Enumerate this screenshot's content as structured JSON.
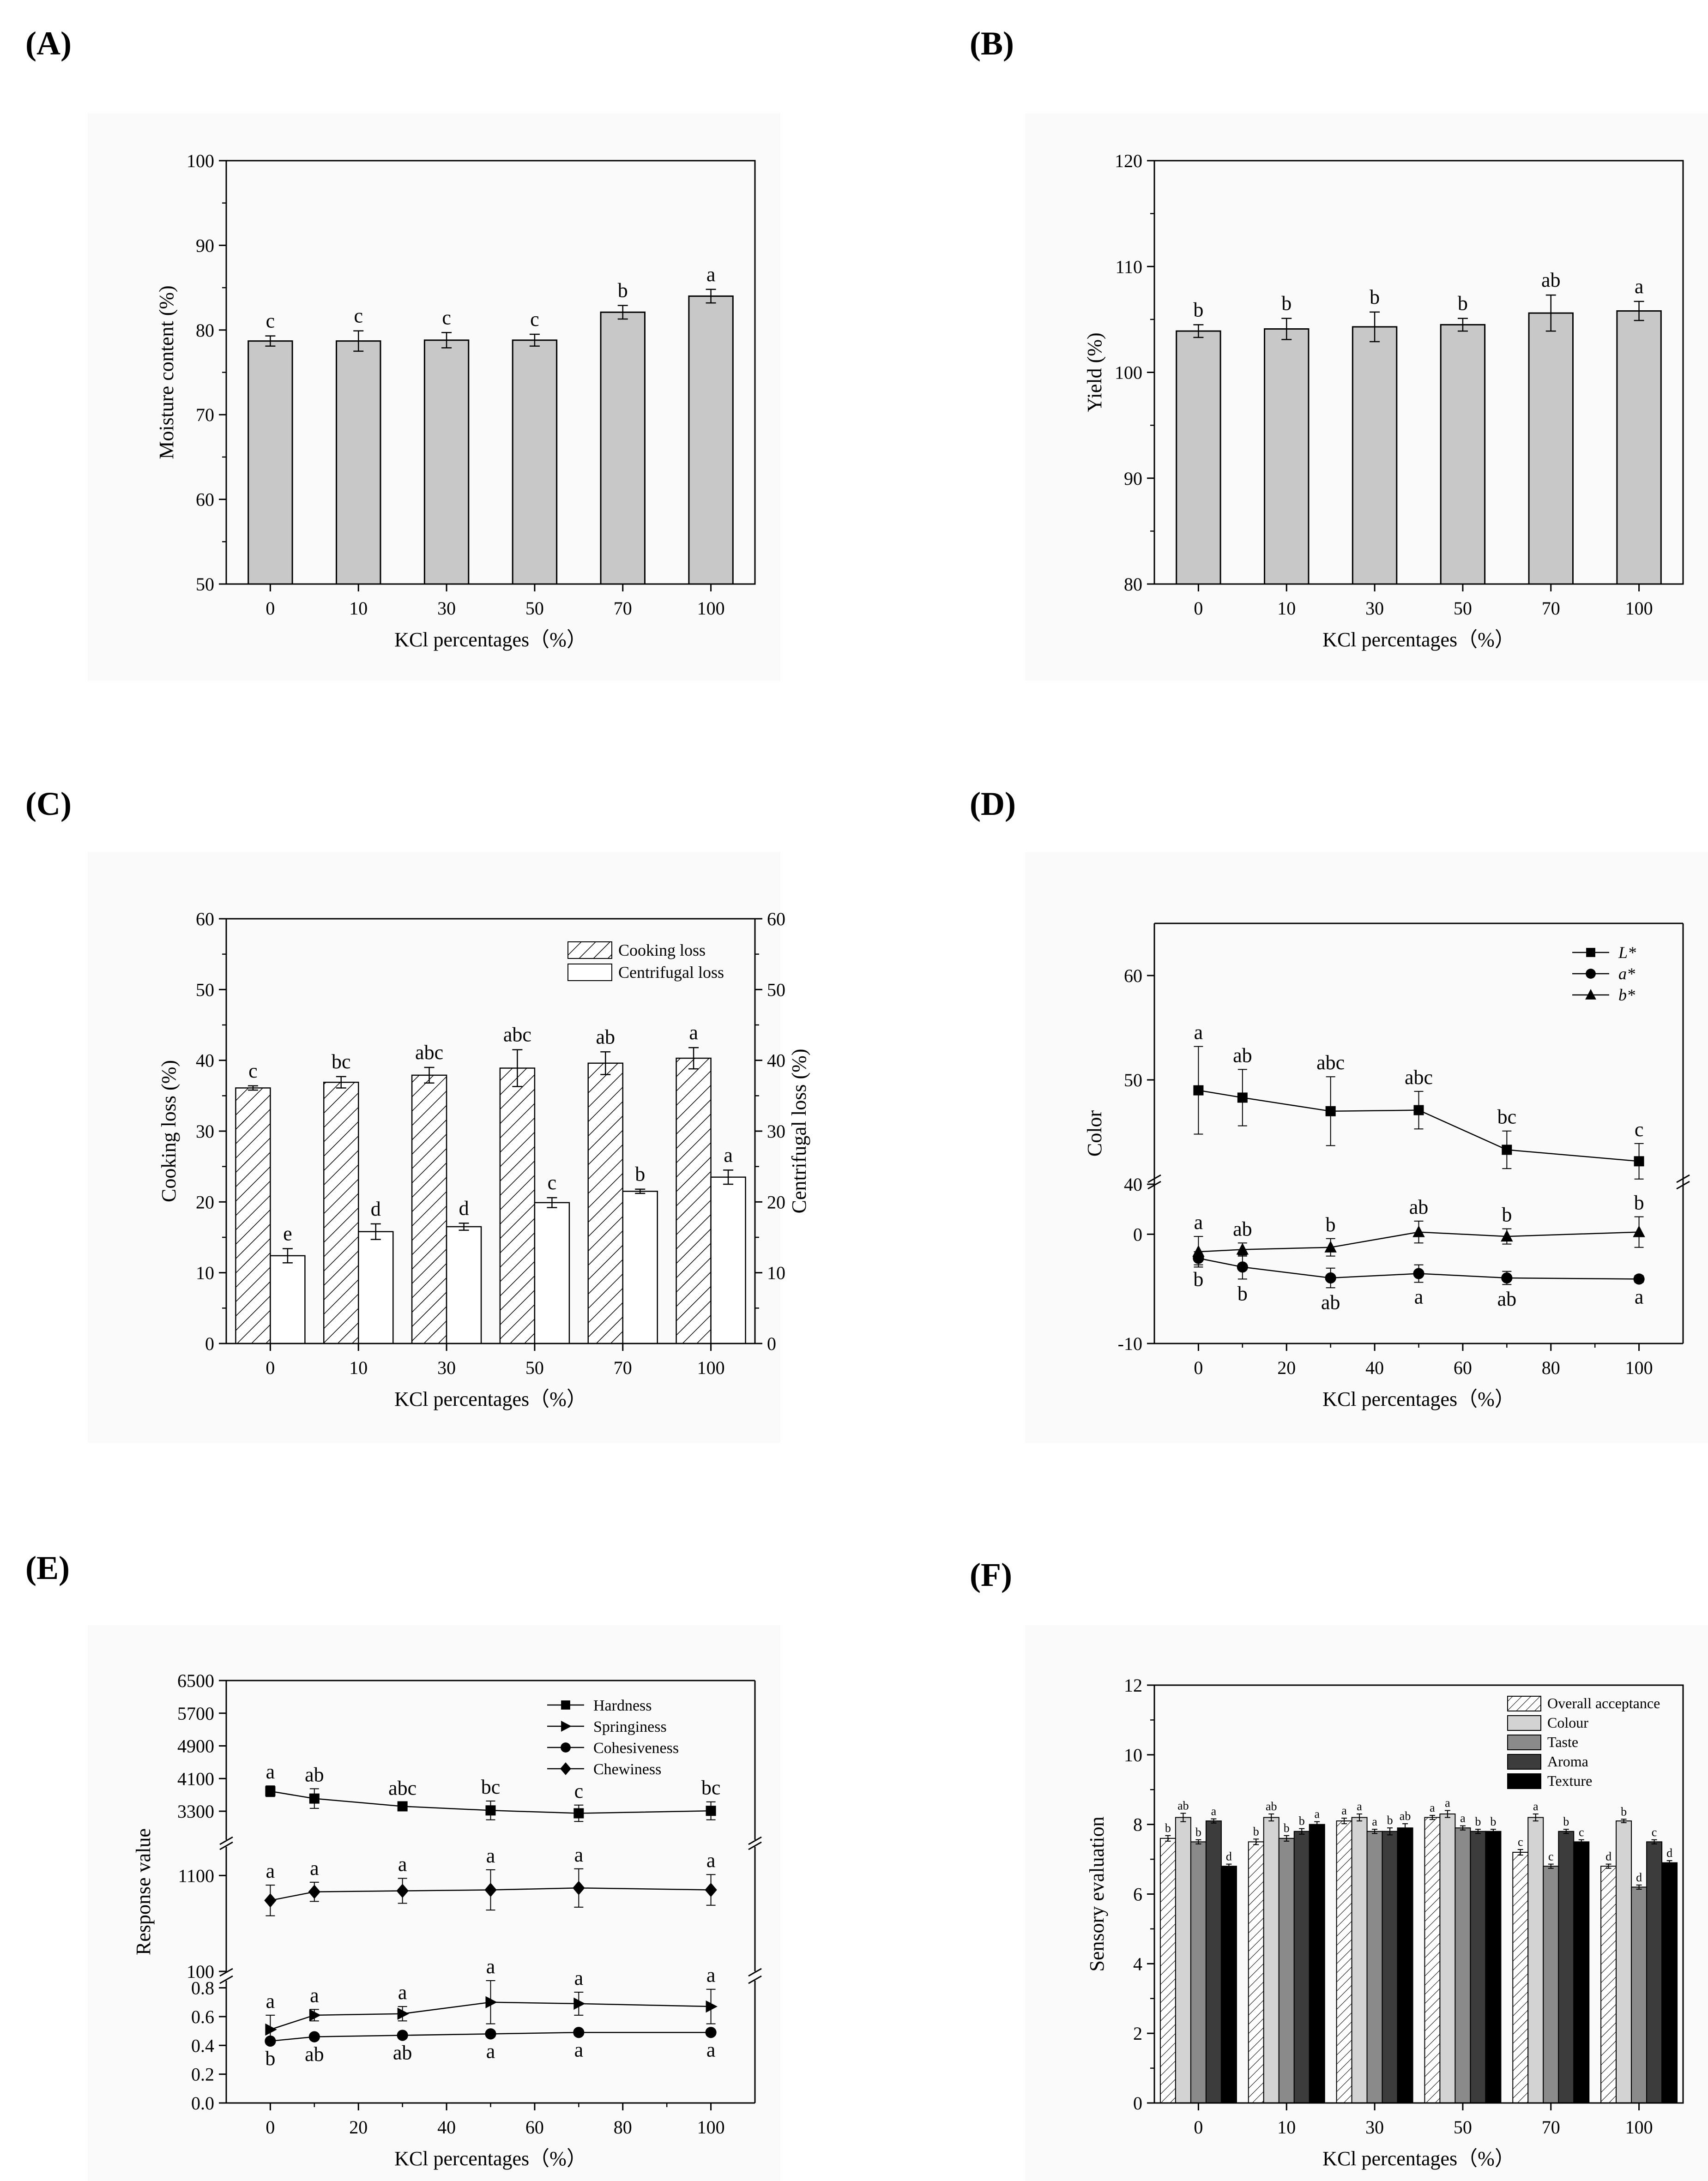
{
  "figure": {
    "panel_labels": [
      "(A)",
      "(B)",
      "(C)",
      "(D)",
      "(E)",
      "(F)"
    ]
  },
  "chart_data": [
    {
      "panel": "(A)",
      "type": "bar",
      "xlabel": "KCl percentages（%）",
      "ylabel": "Moisture content (%)",
      "categories": [
        "0",
        "10",
        "30",
        "50",
        "70",
        "100"
      ],
      "values": [
        78.7,
        78.7,
        78.8,
        78.8,
        82.1,
        84.0
      ],
      "errors": [
        0.6,
        1.2,
        0.9,
        0.7,
        0.8,
        0.8
      ],
      "letters": [
        "c",
        "c",
        "c",
        "c",
        "b",
        "a"
      ],
      "ylim": [
        50,
        100
      ],
      "yticks": [
        50,
        60,
        70,
        80,
        90,
        100
      ],
      "color": "#c8c8c8"
    },
    {
      "panel": "(B)",
      "type": "bar",
      "xlabel": "KCl percentages（%）",
      "ylabel": "Yield (%)",
      "categories": [
        "0",
        "10",
        "30",
        "50",
        "70",
        "100"
      ],
      "values": [
        103.9,
        104.1,
        104.3,
        104.5,
        105.6,
        105.8
      ],
      "errors": [
        0.6,
        1.0,
        1.4,
        0.6,
        1.7,
        0.9
      ],
      "letters": [
        "b",
        "b",
        "b",
        "b",
        "ab",
        "a"
      ],
      "ylim": [
        80,
        120
      ],
      "yticks": [
        80,
        90,
        100,
        110,
        120
      ],
      "color": "#c8c8c8"
    },
    {
      "panel": "(C)",
      "type": "bar",
      "xlabel": "KCl percentages（%）",
      "ylabel": "Cooking loss (%)",
      "ylabel_right": "Centrifugal loss (%)",
      "categories": [
        "0",
        "10",
        "30",
        "50",
        "70",
        "100"
      ],
      "ylim": [
        0,
        60
      ],
      "yticks": [
        0,
        10,
        20,
        30,
        40,
        50,
        60
      ],
      "series": [
        {
          "name": "Cooking loss",
          "values": [
            36.1,
            36.9,
            37.9,
            38.9,
            39.6,
            40.3
          ],
          "errors": [
            0.3,
            0.8,
            1.1,
            2.6,
            1.6,
            1.5
          ],
          "letters": [
            "c",
            "bc",
            "abc",
            "abc",
            "ab",
            "a"
          ],
          "pattern": "hatch"
        },
        {
          "name": "Centrifugal loss",
          "values": [
            12.4,
            15.8,
            16.5,
            19.9,
            21.5,
            23.5
          ],
          "errors": [
            1.0,
            1.1,
            0.5,
            0.7,
            0.3,
            1.0
          ],
          "letters": [
            "e",
            "d",
            "d",
            "c",
            "b",
            "a"
          ],
          "pattern": "white"
        }
      ]
    },
    {
      "panel": "(D)",
      "type": "line",
      "xlabel": "KCl percentages（%）",
      "ylabel": "Color",
      "x": [
        0,
        10,
        30,
        50,
        70,
        100
      ],
      "xlim": [
        -10,
        110
      ],
      "xticks": [
        0,
        20,
        40,
        60,
        80,
        100
      ],
      "segments": [
        {
          "range": [
            -10,
            5
          ],
          "ticks": [
            -10,
            0
          ]
        },
        {
          "range": [
            40,
            65
          ],
          "ticks": [
            40,
            50,
            60
          ]
        }
      ],
      "series": [
        {
          "name": "L*",
          "marker": "square",
          "values": [
            49.0,
            48.3,
            47.0,
            47.1,
            43.3,
            42.2
          ],
          "errors": [
            4.2,
            2.7,
            3.3,
            1.8,
            1.8,
            1.7
          ],
          "letters": [
            "a",
            "ab",
            "abc",
            "abc",
            "bc",
            "c"
          ],
          "letter_pos": "above"
        },
        {
          "name": "a*",
          "marker": "circle",
          "values": [
            -2.2,
            -3.0,
            -4.0,
            -3.6,
            -4.0,
            -4.1
          ],
          "errors": [
            0.6,
            1.1,
            0.9,
            0.8,
            0.6,
            0.3
          ],
          "letters": [
            "b",
            "b",
            "ab",
            "a",
            "ab",
            "a"
          ],
          "letter_pos": "below"
        },
        {
          "name": "b*",
          "marker": "triangle",
          "values": [
            -1.6,
            -1.4,
            -1.2,
            0.2,
            -0.2,
            0.2
          ],
          "errors": [
            1.4,
            0.6,
            0.8,
            1.0,
            0.7,
            1.4
          ],
          "letters": [
            "a",
            "ab",
            "b",
            "ab",
            "b",
            "b"
          ],
          "letter_pos": "above"
        }
      ]
    },
    {
      "panel": "(E)",
      "type": "line",
      "xlabel": "KCl percentages（%）",
      "ylabel": "Response value",
      "x": [
        0,
        10,
        30,
        50,
        70,
        100
      ],
      "xlim": [
        -10,
        110
      ],
      "xticks": [
        0,
        20,
        40,
        60,
        80,
        100
      ],
      "segments": [
        {
          "range": [
            0,
            0.85
          ],
          "ticks": [
            0.0,
            0.2,
            0.4,
            0.6,
            0.8
          ],
          "tick_labels": [
            "0.0",
            "0.2",
            "0.4",
            "0.6",
            "0.8"
          ]
        },
        {
          "range": [
            100,
            1400
          ],
          "ticks": [
            100,
            1100
          ],
          "tick_labels": [
            "100",
            "1100"
          ]
        },
        {
          "range": [
            2600,
            6500
          ],
          "ticks": [
            3300,
            4100,
            4900,
            5700,
            6500
          ],
          "tick_labels": [
            "3300",
            "4100",
            "4900",
            "5700",
            "6500"
          ]
        }
      ],
      "series": [
        {
          "name": "Hardness",
          "marker": "square",
          "values": [
            3790,
            3610,
            3420,
            3320,
            3250,
            3310
          ],
          "errors": [
            130,
            240,
            100,
            230,
            200,
            220
          ],
          "letters": [
            "a",
            "ab",
            "abc",
            "bc",
            "c",
            "bc"
          ],
          "letter_pos": "above"
        },
        {
          "name": "Springiness",
          "marker": "triangle-right",
          "values": [
            0.51,
            0.61,
            0.62,
            0.7,
            0.69,
            0.67
          ],
          "errors": [
            0.1,
            0.04,
            0.05,
            0.15,
            0.08,
            0.12
          ],
          "letters": [
            "a",
            "a",
            "a",
            "a",
            "a",
            "a"
          ],
          "letter_pos": "above"
        },
        {
          "name": "Cohesiveness",
          "marker": "circle",
          "values": [
            0.43,
            0.46,
            0.47,
            0.48,
            0.49,
            0.49
          ],
          "errors": [
            0.02,
            0.02,
            0.02,
            0.02,
            0.02,
            0.02
          ],
          "letters": [
            "b",
            "ab",
            "ab",
            "a",
            "a",
            "a"
          ],
          "letter_pos": "below"
        },
        {
          "name": "Chewiness",
          "marker": "diamond",
          "values": [
            840,
            930,
            940,
            950,
            970,
            950
          ],
          "errors": [
            160,
            100,
            130,
            210,
            200,
            160
          ],
          "letters": [
            "a",
            "a",
            "a",
            "a",
            "a",
            "a"
          ],
          "letter_pos": "above"
        }
      ]
    },
    {
      "panel": "(F)",
      "type": "bar",
      "xlabel": "KCl percentages（%）",
      "ylabel": "Sensory evaluation",
      "categories": [
        "0",
        "10",
        "30",
        "50",
        "70",
        "100"
      ],
      "ylim": [
        0,
        12
      ],
      "yticks": [
        0,
        2,
        4,
        6,
        8,
        10,
        12
      ],
      "series": [
        {
          "name": "Overall acceptance",
          "pattern": "hatch",
          "values": [
            7.6,
            7.5,
            8.1,
            8.2,
            7.2,
            6.8
          ],
          "errors": [
            0.08,
            0.08,
            0.08,
            0.06,
            0.08,
            0.06
          ],
          "letters": [
            "b",
            "b",
            "a",
            "a",
            "c",
            "d"
          ]
        },
        {
          "name": "Colour",
          "color": "#d3d3d3",
          "values": [
            8.2,
            8.2,
            8.2,
            8.3,
            8.2,
            8.1
          ],
          "errors": [
            0.12,
            0.1,
            0.1,
            0.1,
            0.1,
            0.05
          ],
          "letters": [
            "ab",
            "ab",
            "a",
            "a",
            "a",
            "b"
          ]
        },
        {
          "name": "Taste",
          "color": "#8a8a8a",
          "values": [
            7.5,
            7.6,
            7.8,
            7.9,
            6.8,
            6.2
          ],
          "errors": [
            0.06,
            0.08,
            0.06,
            0.06,
            0.06,
            0.06
          ],
          "letters": [
            "b",
            "b",
            "a",
            "a",
            "c",
            "d"
          ]
        },
        {
          "name": "Aroma",
          "color": "#3c3c3c",
          "values": [
            8.1,
            7.8,
            7.8,
            7.8,
            7.8,
            7.5
          ],
          "errors": [
            0.06,
            0.08,
            0.1,
            0.06,
            0.06,
            0.06
          ],
          "letters": [
            "a",
            "b",
            "b",
            "b",
            "b",
            "c"
          ]
        },
        {
          "name": "Texture",
          "color": "#000000",
          "values": [
            6.8,
            8.0,
            7.9,
            7.8,
            7.5,
            6.9
          ],
          "errors": [
            0.06,
            0.08,
            0.12,
            0.06,
            0.06,
            0.06
          ],
          "letters": [
            "d",
            "a",
            "ab",
            "b",
            "c",
            "d"
          ]
        }
      ]
    }
  ]
}
